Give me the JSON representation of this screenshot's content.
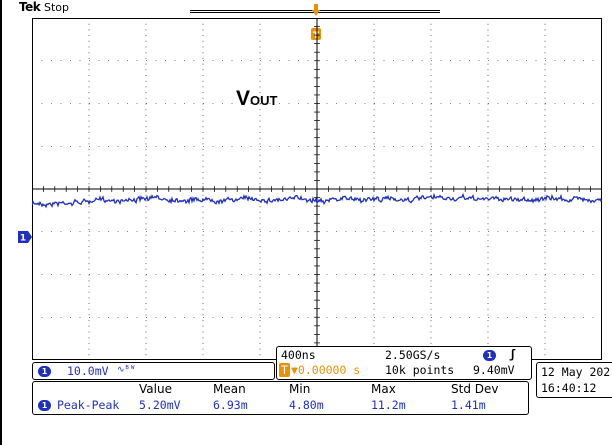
{
  "header": {
    "logo": "Tek",
    "status": "Stop"
  },
  "waveform": {
    "label_main": "V",
    "label_sub": "OUT",
    "channel": "1",
    "trace_color": "#1f2fbf"
  },
  "channel_scale": {
    "channel": "1",
    "scale": "10.0mV",
    "coupling_symbol": "∿ᴮᵂ"
  },
  "timebase": {
    "time_per_div": "400ns",
    "sample_rate": "2.50GS/s",
    "trigger_offset": "▼0.00000 s",
    "record_length": "10k points",
    "trigger_channel": "1",
    "trigger_slope": "ʃ",
    "trigger_level": "9.40mV"
  },
  "datetime": {
    "date": "12 May 202",
    "time": "16:40:12"
  },
  "measurements": {
    "headers": [
      "Value",
      "Mean",
      "Min",
      "Max",
      "Std Dev"
    ],
    "rows": [
      {
        "channel": "1",
        "name": "Peak-Peak",
        "value": "5.20mV",
        "mean": "6.93m",
        "min": "4.80m",
        "max": "11.2m",
        "std_dev": "1.41m"
      }
    ]
  },
  "colors": {
    "channel1": "#1f2fbf",
    "trigger": "#e8920a",
    "graticule": "#000000"
  }
}
